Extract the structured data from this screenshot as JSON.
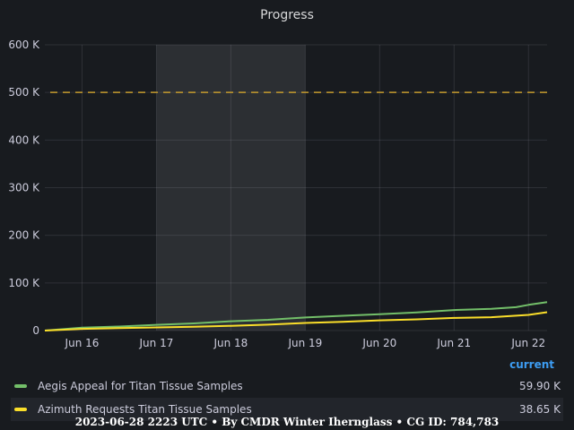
{
  "chart_data": {
    "type": "line",
    "title": "Progress",
    "x_ticks": [
      "Jun 16",
      "Jun 17",
      "Jun 18",
      "Jun 19",
      "Jun 20",
      "Jun 21",
      "Jun 22"
    ],
    "y_ticks": [
      "0",
      "100 K",
      "200 K",
      "300 K",
      "400 K",
      "500 K",
      "600 K"
    ],
    "ylim": [
      0,
      600000
    ],
    "xlim": [
      "2023-06-15 12:00",
      "2023-06-22 06:00"
    ],
    "highlight_range": [
      "2023-06-17",
      "2023-06-19"
    ],
    "threshold": {
      "value": 500000,
      "style": "dashed",
      "color": "#c59b2e"
    },
    "grid": true,
    "legend_placement": "bottom",
    "legend_column": "current",
    "series": [
      {
        "name": "Aegis Appeal for Titan Tissue Samples",
        "color": "#73bf69",
        "current": "59.90 K",
        "points": [
          [
            "2023-06-15 12:00",
            0
          ],
          [
            "2023-06-16 00:00",
            6000
          ],
          [
            "2023-06-16 12:00",
            8500
          ],
          [
            "2023-06-17 00:00",
            12000
          ],
          [
            "2023-06-17 12:00",
            15000
          ],
          [
            "2023-06-18 00:00",
            19500
          ],
          [
            "2023-06-18 12:00",
            22500
          ],
          [
            "2023-06-19 00:00",
            27500
          ],
          [
            "2023-06-19 12:00",
            31000
          ],
          [
            "2023-06-20 00:00",
            34500
          ],
          [
            "2023-06-20 12:00",
            38000
          ],
          [
            "2023-06-21 00:00",
            43000
          ],
          [
            "2023-06-21 12:00",
            45500
          ],
          [
            "2023-06-21 20:00",
            49000
          ],
          [
            "2023-06-22 00:00",
            54000
          ],
          [
            "2023-06-22 06:00",
            59900
          ]
        ]
      },
      {
        "name": "Azimuth Requests Titan Tissue Samples",
        "color": "#fade2a",
        "current": "38.65 K",
        "points": [
          [
            "2023-06-15 12:00",
            0
          ],
          [
            "2023-06-16 00:00",
            3500
          ],
          [
            "2023-06-16 12:00",
            5000
          ],
          [
            "2023-06-17 00:00",
            6500
          ],
          [
            "2023-06-17 12:00",
            8000
          ],
          [
            "2023-06-18 00:00",
            10000
          ],
          [
            "2023-06-18 12:00",
            12500
          ],
          [
            "2023-06-19 00:00",
            16000
          ],
          [
            "2023-06-19 12:00",
            18500
          ],
          [
            "2023-06-20 00:00",
            21500
          ],
          [
            "2023-06-20 12:00",
            23500
          ],
          [
            "2023-06-21 00:00",
            26500
          ],
          [
            "2023-06-21 12:00",
            28000
          ],
          [
            "2023-06-22 00:00",
            33000
          ],
          [
            "2023-06-22 06:00",
            38650
          ]
        ]
      }
    ]
  },
  "footer": "2023-06-28 2223 UTC • By CMDR Winter Iherngl​ass • CG ID: 784,783"
}
